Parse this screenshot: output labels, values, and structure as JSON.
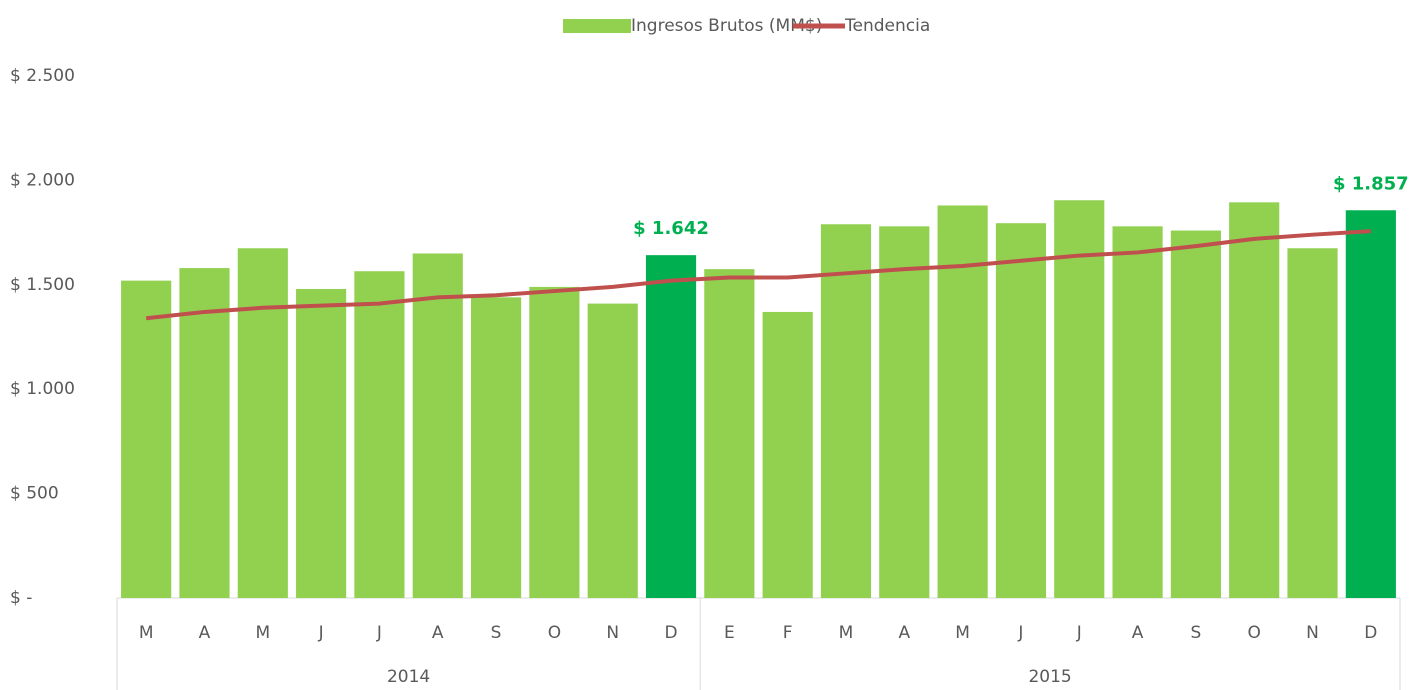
{
  "chart_data": {
    "type": "bar",
    "categories": [
      "M",
      "A",
      "M",
      "J",
      "J",
      "A",
      "S",
      "O",
      "N",
      "D",
      "E",
      "F",
      "M",
      "A",
      "M",
      "J",
      "J",
      "A",
      "S",
      "O",
      "N",
      "D"
    ],
    "groups": [
      {
        "name": "2014",
        "count": 10
      },
      {
        "name": "2015",
        "count": 12
      }
    ],
    "series": [
      {
        "name": "Ingresos Brutos (MM$)",
        "type": "bar",
        "color": "#92d050",
        "colors": [
          "#92d050",
          "#92d050",
          "#92d050",
          "#92d050",
          "#92d050",
          "#92d050",
          "#92d050",
          "#92d050",
          "#92d050",
          "#00b050",
          "#92d050",
          "#92d050",
          "#92d050",
          "#92d050",
          "#92d050",
          "#92d050",
          "#92d050",
          "#92d050",
          "#92d050",
          "#92d050",
          "#92d050",
          "#00b050"
        ],
        "values": [
          1520,
          1580,
          1675,
          1480,
          1565,
          1650,
          1440,
          1490,
          1410,
          1642,
          1575,
          1370,
          1790,
          1780,
          1880,
          1795,
          1905,
          1780,
          1760,
          1895,
          1675,
          1857
        ],
        "value_labels": [
          null,
          null,
          null,
          null,
          null,
          null,
          null,
          null,
          null,
          "$ 1.642",
          null,
          null,
          null,
          null,
          null,
          null,
          null,
          null,
          null,
          null,
          null,
          "$ 1.857"
        ]
      },
      {
        "name": "Tendencia",
        "type": "line",
        "color": "#c0504d",
        "values": [
          1340,
          1370,
          1390,
          1400,
          1410,
          1440,
          1450,
          1470,
          1490,
          1520,
          1535,
          1535,
          1555,
          1575,
          1590,
          1615,
          1640,
          1655,
          1685,
          1720,
          1740,
          1757
        ]
      }
    ],
    "ylim": [
      0,
      2500
    ],
    "yticks": [
      {
        "value": 0,
        "label": "$ -"
      },
      {
        "value": 500,
        "label": "$ 500"
      },
      {
        "value": 1000,
        "label": "$ 1.000"
      },
      {
        "value": 1500,
        "label": "$ 1.500"
      },
      {
        "value": 2000,
        "label": "$ 2.000"
      },
      {
        "value": 2500,
        "label": "$ 2.500"
      }
    ],
    "grid": false,
    "legend": "top"
  }
}
